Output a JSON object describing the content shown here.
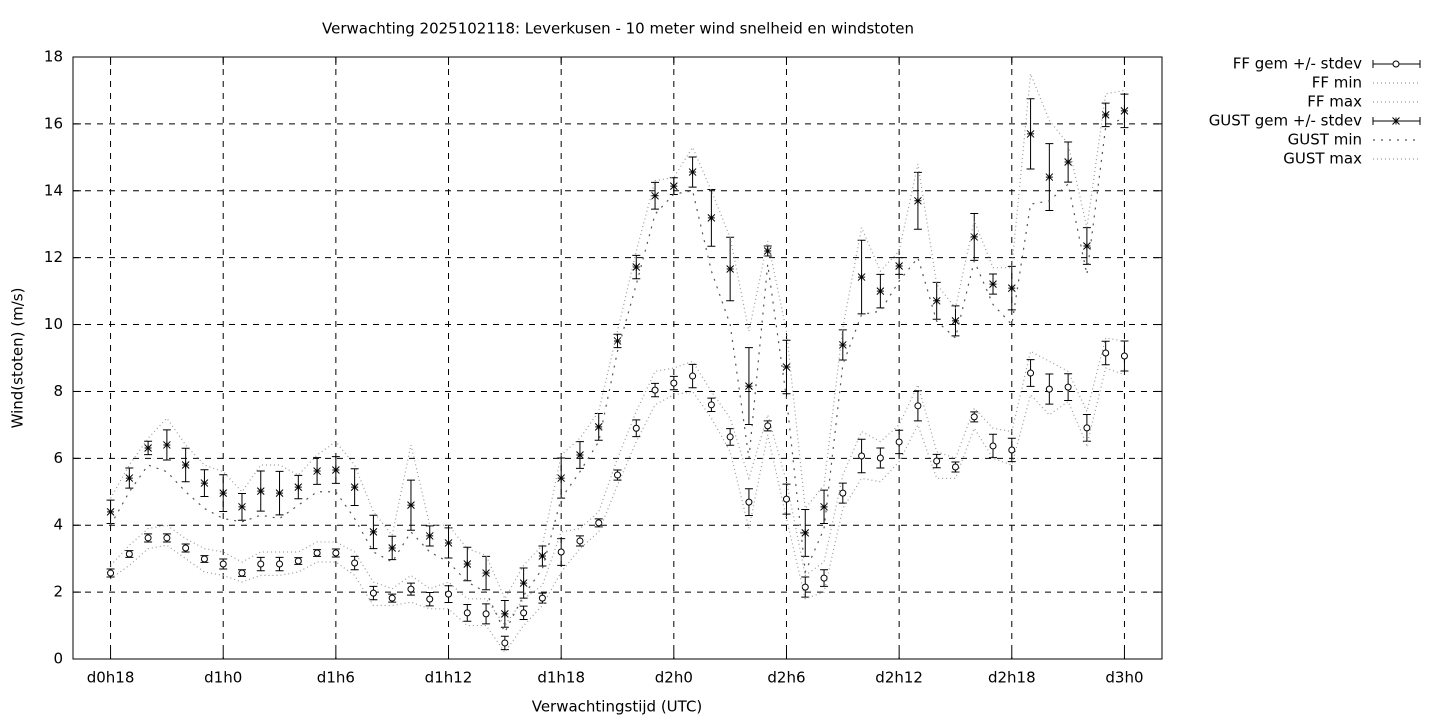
{
  "chart_data": {
    "type": "errorbar",
    "title": "Verwachting 2025102118: Leverkusen - 10 meter wind snelheid en windstoten",
    "x_label": "Verwachtingstijd (UTC)",
    "y_label": "Wind(stoten) (m/s)",
    "xlim": [
      16,
      74
    ],
    "ylim": [
      0,
      18
    ],
    "xticks": [
      {
        "value": 18,
        "label": "d0h18"
      },
      {
        "value": 24,
        "label": "d1h0"
      },
      {
        "value": 30,
        "label": "d1h6"
      },
      {
        "value": 36,
        "label": "d1h12"
      },
      {
        "value": 42,
        "label": "d1h18"
      },
      {
        "value": 48,
        "label": "d2h0"
      },
      {
        "value": 54,
        "label": "d2h6"
      },
      {
        "value": 60,
        "label": "d2h12"
      },
      {
        "value": 66,
        "label": "d2h18"
      },
      {
        "value": 72,
        "label": "d3h0"
      }
    ],
    "yticks": [
      0,
      2,
      4,
      6,
      8,
      10,
      12,
      14,
      16,
      18
    ],
    "grid": true,
    "legend": "outside-top-right",
    "x": [
      18,
      19,
      20,
      21,
      22,
      23,
      24,
      25,
      26,
      27,
      28,
      29,
      30,
      31,
      32,
      33,
      34,
      35,
      36,
      37,
      38,
      39,
      40,
      41,
      42,
      43,
      44,
      45,
      46,
      47,
      48,
      49,
      50,
      51,
      52,
      53,
      54,
      55,
      56,
      57,
      58,
      59,
      60,
      61,
      62,
      63,
      64,
      65,
      66,
      67,
      68,
      69,
      70,
      71,
      72
    ],
    "series": [
      {
        "name": "FF gem +/- stdev",
        "style": "errorbars",
        "marker": "circle",
        "color": "#000000",
        "values": [
          2.57,
          3.14,
          3.62,
          3.62,
          3.32,
          2.99,
          2.84,
          2.57,
          2.84,
          2.84,
          2.93,
          3.17,
          3.17,
          2.87,
          1.97,
          1.82,
          2.09,
          1.79,
          1.94,
          1.38,
          1.35,
          0.48,
          1.38,
          1.82,
          3.2,
          3.53,
          4.07,
          5.5,
          6.9,
          8.04,
          8.25,
          8.46,
          7.6,
          6.64,
          4.69,
          6.97,
          4.78,
          2.15,
          2.42,
          4.96,
          6.07,
          6.01,
          6.49,
          7.57,
          5.92,
          5.74,
          7.24,
          6.37,
          6.25,
          8.55,
          8.07,
          8.13,
          6.91,
          9.15,
          9.06
        ],
        "errors": [
          0.12,
          0.1,
          0.12,
          0.12,
          0.12,
          0.1,
          0.15,
          0.1,
          0.2,
          0.2,
          0.1,
          0.1,
          0.12,
          0.2,
          0.2,
          0.12,
          0.18,
          0.2,
          0.25,
          0.25,
          0.3,
          0.2,
          0.2,
          0.15,
          0.4,
          0.15,
          0.12,
          0.15,
          0.25,
          0.2,
          0.2,
          0.35,
          0.2,
          0.25,
          0.4,
          0.15,
          0.45,
          0.3,
          0.25,
          0.3,
          0.5,
          0.3,
          0.35,
          0.45,
          0.2,
          0.15,
          0.15,
          0.35,
          0.35,
          0.4,
          0.45,
          0.4,
          0.4,
          0.35,
          0.45
        ]
      },
      {
        "name": "FF min",
        "style": "line",
        "dash": "1 3",
        "color": "#9a9a9a",
        "values": [
          2.4,
          2.8,
          3.3,
          3.4,
          3.0,
          2.6,
          2.5,
          2.3,
          2.5,
          2.5,
          2.6,
          2.9,
          2.9,
          2.5,
          1.6,
          1.6,
          1.7,
          1.5,
          1.5,
          1.0,
          1.0,
          0.2,
          1.0,
          1.6,
          2.6,
          3.3,
          3.8,
          5.2,
          6.5,
          7.6,
          7.9,
          8.0,
          7.2,
          6.2,
          3.9,
          6.7,
          4.2,
          1.8,
          2.0,
          4.5,
          5.4,
          5.3,
          5.9,
          7.0,
          5.4,
          5.4,
          6.9,
          6.0,
          5.8,
          7.9,
          7.3,
          7.7,
          6.4,
          8.7,
          8.5
        ]
      },
      {
        "name": "FF max",
        "style": "line",
        "dash": "1 3",
        "color": "#9a9a9a",
        "values": [
          2.8,
          3.4,
          3.9,
          4.0,
          3.6,
          3.3,
          3.2,
          2.9,
          3.2,
          3.2,
          3.2,
          3.5,
          3.5,
          3.2,
          2.3,
          2.1,
          2.5,
          2.1,
          2.3,
          1.8,
          1.8,
          1.0,
          1.8,
          2.2,
          3.8,
          3.9,
          4.4,
          6.0,
          7.4,
          8.6,
          8.7,
          8.9,
          8.0,
          7.2,
          5.4,
          7.3,
          5.3,
          2.5,
          2.9,
          5.5,
          6.8,
          6.5,
          7.0,
          8.2,
          6.2,
          6.0,
          7.5,
          6.9,
          6.8,
          9.2,
          8.9,
          8.6,
          7.4,
          9.6,
          9.5
        ]
      },
      {
        "name": "GUST gem +/- stdev",
        "style": "errorbars",
        "marker": "star",
        "color": "#000000",
        "values": [
          4.4,
          5.41,
          6.31,
          6.4,
          5.8,
          5.26,
          4.96,
          4.55,
          5.02,
          4.96,
          5.14,
          5.62,
          5.65,
          5.14,
          3.8,
          3.32,
          4.6,
          3.68,
          3.47,
          2.84,
          2.57,
          1.35,
          2.27,
          3.08,
          5.41,
          6.1,
          6.94,
          9.51,
          11.72,
          13.85,
          14.14,
          14.56,
          13.19,
          11.66,
          8.16,
          12.2,
          8.73,
          3.77,
          4.55,
          9.39,
          11.42,
          11.0,
          11.75,
          13.7,
          10.71,
          10.11,
          12.62,
          11.21,
          11.09,
          15.7,
          14.41,
          14.86,
          12.35,
          16.27,
          16.39
        ],
        "errors": [
          0.35,
          0.3,
          0.2,
          0.45,
          0.5,
          0.4,
          0.55,
          0.4,
          0.6,
          0.65,
          0.35,
          0.4,
          0.4,
          0.55,
          0.5,
          0.35,
          0.75,
          0.3,
          0.45,
          0.5,
          0.5,
          0.4,
          0.45,
          0.3,
          0.6,
          0.4,
          0.4,
          0.2,
          0.35,
          0.4,
          0.25,
          0.45,
          0.85,
          0.95,
          1.15,
          0.15,
          0.8,
          0.7,
          0.5,
          0.45,
          1.1,
          0.5,
          0.25,
          0.85,
          0.55,
          0.45,
          0.7,
          0.3,
          0.65,
          1.05,
          1.0,
          0.6,
          0.55,
          0.35,
          0.5
        ]
      },
      {
        "name": "GUST min",
        "style": "line",
        "dash": "2 6",
        "color": "#555555",
        "values": [
          4.0,
          5.0,
          5.8,
          5.6,
          5.0,
          4.5,
          4.2,
          4.1,
          4.3,
          4.2,
          4.6,
          5.0,
          5.0,
          4.2,
          3.2,
          2.9,
          3.8,
          3.2,
          2.9,
          2.3,
          2.0,
          0.8,
          1.9,
          2.7,
          4.8,
          5.6,
          6.5,
          9.2,
          11.2,
          13.3,
          13.9,
          14.0,
          11.6,
          10.0,
          6.0,
          11.8,
          7.8,
          2.6,
          3.9,
          8.8,
          10.3,
          10.4,
          11.3,
          12.0,
          10.1,
          9.6,
          11.9,
          10.6,
          10.0,
          13.6,
          13.7,
          14.2,
          11.5,
          15.9,
          16.2
        ]
      },
      {
        "name": "GUST max",
        "style": "line",
        "dash": "1 3",
        "color": "#9a9a9a",
        "values": [
          4.8,
          5.8,
          6.6,
          7.2,
          6.4,
          5.8,
          5.6,
          5.0,
          5.8,
          5.8,
          5.5,
          6.1,
          6.5,
          5.8,
          4.4,
          3.7,
          6.4,
          4.0,
          4.0,
          3.3,
          3.1,
          1.8,
          2.8,
          3.4,
          6.1,
          6.6,
          7.4,
          9.8,
          12.2,
          14.3,
          14.4,
          15.3,
          14.0,
          12.6,
          9.8,
          12.5,
          9.8,
          4.5,
          5.2,
          9.9,
          12.9,
          11.6,
          12.2,
          14.8,
          11.2,
          10.5,
          13.1,
          11.7,
          11.7,
          17.5,
          16.1,
          15.4,
          12.9,
          16.9,
          17.0
        ]
      }
    ]
  }
}
